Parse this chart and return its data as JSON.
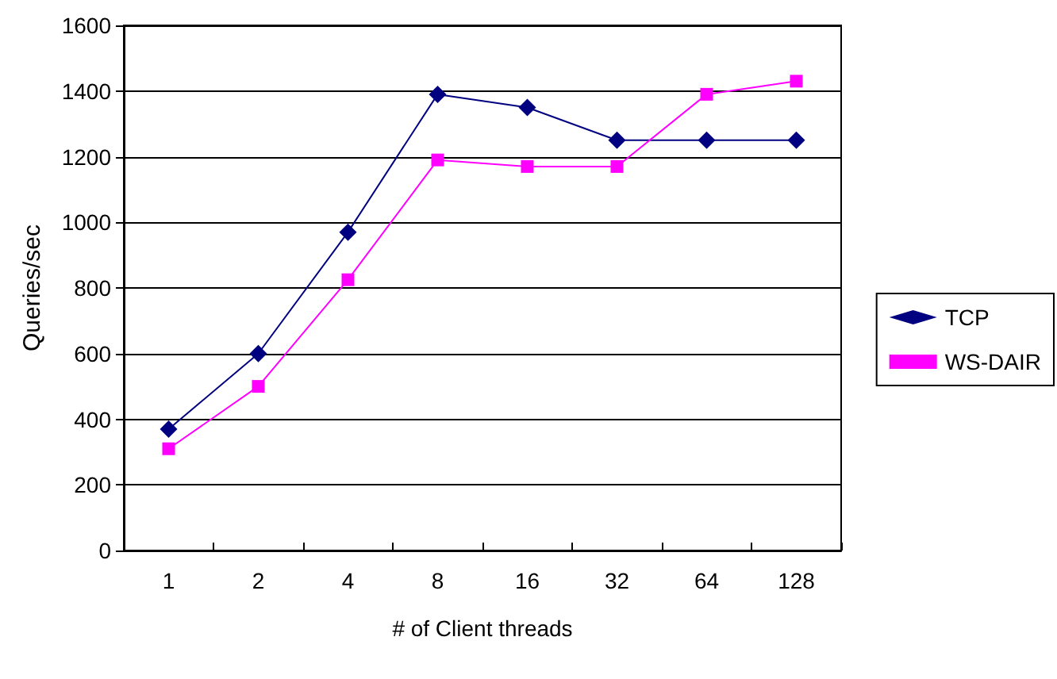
{
  "chart_data": {
    "type": "line",
    "xlabel": "# of Client threads",
    "ylabel": "Queries/sec",
    "categories": [
      "1",
      "2",
      "4",
      "8",
      "16",
      "32",
      "64",
      "128"
    ],
    "series": [
      {
        "name": "TCP",
        "color": "#000080",
        "marker": "diamond",
        "values": [
          370,
          600,
          970,
          1390,
          1350,
          1250,
          1250,
          1250
        ]
      },
      {
        "name": "WS-DAIR",
        "color": "#ff00ff",
        "marker": "square",
        "values": [
          310,
          500,
          825,
          1190,
          1170,
          1170,
          1390,
          1430
        ]
      }
    ],
    "ylim": [
      0,
      1600
    ],
    "yticks": [
      0,
      200,
      400,
      600,
      800,
      1000,
      1200,
      1400,
      1600
    ],
    "grid": "y",
    "legend": "right"
  }
}
